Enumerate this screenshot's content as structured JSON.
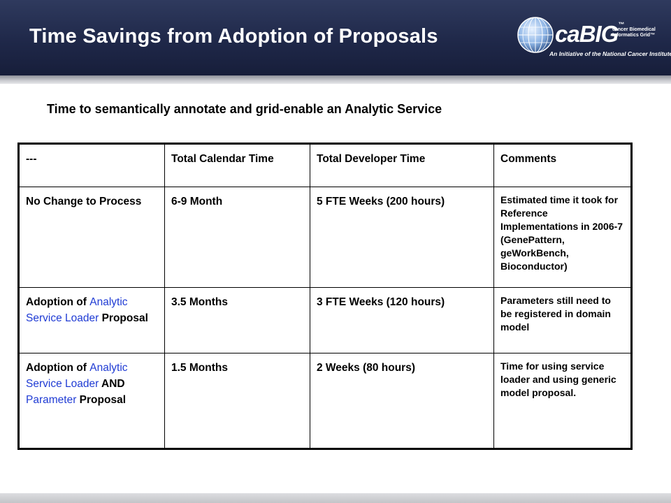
{
  "header": {
    "title": "Time Savings from Adoption of Proposals",
    "logo": {
      "name": "caBIG",
      "superscript": "™",
      "sub_line1": "cancer Biomedical",
      "sub_line2": "Informatics Grid™",
      "tagline": "An Initiative of the National Cancer Institute"
    }
  },
  "subtitle": "Time to semantically annotate and grid-enable an Analytic Service",
  "table": {
    "headers": [
      "---",
      "Total Calendar Time",
      "Total Developer Time",
      "Comments"
    ],
    "rows": [
      {
        "label": {
          "prefix": "No Change to Process",
          "blue1": "",
          "middle": "",
          "blue2": "",
          "suffix": ""
        },
        "calendar": "6-9 Month",
        "developer": "5 FTE Weeks (200 hours)",
        "comments": "Estimated time it took for Reference Implementations in 2006-7 (GenePattern, geWorkBench, Bioconductor)"
      },
      {
        "label": {
          "prefix": "Adoption of ",
          "blue1": "Analytic Service Loader",
          "middle": " Proposal",
          "blue2": "",
          "suffix": ""
        },
        "calendar": "3.5 Months",
        "developer": "3 FTE Weeks (120 hours)",
        "comments": "Parameters still need to be registered in domain model"
      },
      {
        "label": {
          "prefix": "Adoption of ",
          "blue1": "Analytic Service Loader",
          "middle": " AND ",
          "blue2": "Parameter",
          "suffix": " Proposal"
        },
        "calendar": "1.5 Months",
        "developer": "2 Weeks (80 hours)",
        "comments": "Time for using service loader and using generic model proposal."
      }
    ]
  }
}
